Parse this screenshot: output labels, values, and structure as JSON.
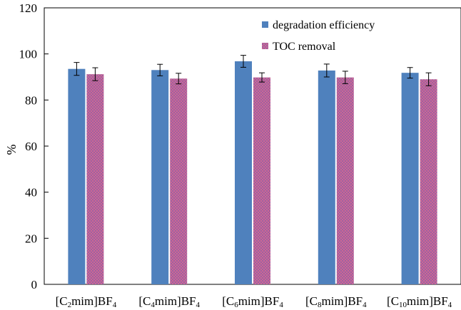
{
  "chart_data": {
    "type": "bar",
    "categories": [
      {
        "pre": "[C",
        "sub": "2",
        "post": "mim]BF",
        "sub2": "4"
      },
      {
        "pre": "[C",
        "sub": "4",
        "post": "mim]BF",
        "sub2": "4"
      },
      {
        "pre": "[C",
        "sub": "6",
        "post": "mim]BF",
        "sub2": "4"
      },
      {
        "pre": "[C",
        "sub": "8",
        "post": "mim]BF",
        "sub2": "4"
      },
      {
        "pre": "[C",
        "sub": "10",
        "post": "mim]BF",
        "sub2": "4"
      }
    ],
    "series": [
      {
        "name": "degradation efficiency",
        "values": [
          93.5,
          93.0,
          96.8,
          92.8,
          91.8
        ],
        "errors": [
          2.8,
          2.5,
          2.6,
          2.8,
          2.3
        ]
      },
      {
        "name": "TOC removal",
        "values": [
          91.2,
          89.3,
          89.8,
          89.8,
          89.0
        ],
        "errors": [
          2.8,
          2.3,
          2.0,
          2.7,
          2.8
        ]
      }
    ],
    "xlabel": "",
    "ylabel": "%",
    "ylim": [
      0,
      120
    ],
    "yticks": [
      0,
      20,
      40,
      60,
      80,
      100,
      120
    ],
    "legend_position": "top-right",
    "colors": {
      "degradation efficiency": "#4F81BD",
      "TOC removal": "#8E5FA8",
      "TOC removal hatch": "#D96A8E"
    },
    "grid": false
  }
}
